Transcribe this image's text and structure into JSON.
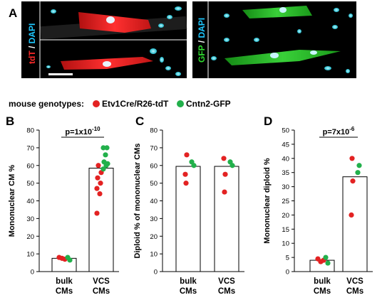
{
  "panel_a": {
    "letter": "A",
    "left_labels": {
      "tdt": "tdT",
      "sep": " / ",
      "dapi": "DAPI"
    },
    "right_labels": {
      "gfp": "GFP",
      "sep": " / ",
      "dapi": "DAPI"
    }
  },
  "legend": {
    "title": "mouse genotypes:",
    "items": [
      {
        "label": "Etv1Cre/R26-tdT",
        "color": "#e32222"
      },
      {
        "label": "Cntn2-GFP",
        "color": "#22b04b"
      }
    ]
  },
  "colors": {
    "red": "#e32222",
    "green": "#22b04b"
  },
  "chart_data": [
    {
      "panel": "B",
      "type": "bar",
      "ylabel": "Mononuclear CM %",
      "ylim": [
        0,
        80
      ],
      "yticks": [
        0,
        10,
        20,
        30,
        40,
        50,
        60,
        70,
        80
      ],
      "categories": [
        [
          "bulk",
          "CMs"
        ],
        [
          "VCS",
          "CMs"
        ]
      ],
      "bar_values": [
        7.5,
        58.5
      ],
      "points": [
        {
          "cat": 0,
          "y": 8,
          "g": "red",
          "dx": -7
        },
        {
          "cat": 0,
          "y": 7.5,
          "g": "red",
          "dx": -3
        },
        {
          "cat": 0,
          "y": 7,
          "g": "red",
          "dx": 1
        },
        {
          "cat": 0,
          "y": 8,
          "g": "green",
          "dx": 5
        },
        {
          "cat": 0,
          "y": 6.5,
          "g": "green",
          "dx": 8
        },
        {
          "cat": 1,
          "y": 33,
          "g": "red",
          "dx": -6
        },
        {
          "cat": 1,
          "y": 44,
          "g": "red",
          "dx": -2
        },
        {
          "cat": 1,
          "y": 47,
          "g": "red",
          "dx": -6
        },
        {
          "cat": 1,
          "y": 50,
          "g": "red",
          "dx": -1
        },
        {
          "cat": 1,
          "y": 53,
          "g": "red",
          "dx": -5
        },
        {
          "cat": 1,
          "y": 56,
          "g": "red",
          "dx": 0
        },
        {
          "cat": 1,
          "y": 60,
          "g": "red",
          "dx": -4
        },
        {
          "cat": 1,
          "y": 58,
          "g": "green",
          "dx": 3
        },
        {
          "cat": 1,
          "y": 60,
          "g": "green",
          "dx": 7
        },
        {
          "cat": 1,
          "y": 62,
          "g": "green",
          "dx": 4
        },
        {
          "cat": 1,
          "y": 61,
          "g": "green",
          "dx": 9
        },
        {
          "cat": 1,
          "y": 66,
          "g": "green",
          "dx": 6
        },
        {
          "cat": 1,
          "y": 70,
          "g": "green",
          "dx": 3
        },
        {
          "cat": 1,
          "y": 70,
          "g": "green",
          "dx": 8
        }
      ],
      "pvalue": {
        "base": "p=1x10",
        "exp": "-10"
      }
    },
    {
      "panel": "C",
      "type": "bar",
      "ylabel": "Diploid % of mononuclear CMs",
      "ylim": [
        0,
        80
      ],
      "yticks": [
        0,
        10,
        20,
        30,
        40,
        50,
        60,
        70,
        80
      ],
      "categories": [
        [
          "bulk",
          "CMs"
        ],
        [
          "VCS",
          "CMs"
        ]
      ],
      "bar_values": [
        59.5,
        59.5
      ],
      "points": [
        {
          "cat": 0,
          "y": 66,
          "g": "red",
          "dx": -2
        },
        {
          "cat": 0,
          "y": 55,
          "g": "red",
          "dx": -4
        },
        {
          "cat": 0,
          "y": 50,
          "g": "red",
          "dx": -3
        },
        {
          "cat": 0,
          "y": 62,
          "g": "green",
          "dx": 5
        },
        {
          "cat": 0,
          "y": 60,
          "g": "green",
          "dx": 8
        },
        {
          "cat": 1,
          "y": 64,
          "g": "red",
          "dx": -4
        },
        {
          "cat": 1,
          "y": 55,
          "g": "red",
          "dx": -2
        },
        {
          "cat": 1,
          "y": 45,
          "g": "red",
          "dx": -3
        },
        {
          "cat": 1,
          "y": 62,
          "g": "green",
          "dx": 5
        },
        {
          "cat": 1,
          "y": 60,
          "g": "green",
          "dx": 8
        }
      ]
    },
    {
      "panel": "D",
      "type": "bar",
      "ylabel": "Mononuclear diploid %",
      "ylim": [
        0,
        50
      ],
      "yticks": [
        0,
        5,
        10,
        15,
        20,
        25,
        30,
        35,
        40,
        45,
        50
      ],
      "categories": [
        [
          "bulk",
          "CMs"
        ],
        [
          "VCS",
          "CMs"
        ]
      ],
      "bar_values": [
        4,
        33.5
      ],
      "points": [
        {
          "cat": 0,
          "y": 4.5,
          "g": "red",
          "dx": -6
        },
        {
          "cat": 0,
          "y": 3.5,
          "g": "red",
          "dx": -2
        },
        {
          "cat": 0,
          "y": 4,
          "g": "red",
          "dx": 2
        },
        {
          "cat": 0,
          "y": 5,
          "g": "green",
          "dx": 5
        },
        {
          "cat": 0,
          "y": 3,
          "g": "green",
          "dx": 8
        },
        {
          "cat": 1,
          "y": 40,
          "g": "red",
          "dx": -4
        },
        {
          "cat": 1,
          "y": 32,
          "g": "red",
          "dx": -3
        },
        {
          "cat": 1,
          "y": 20,
          "g": "red",
          "dx": -5
        },
        {
          "cat": 1,
          "y": 37.5,
          "g": "green",
          "dx": 6
        },
        {
          "cat": 1,
          "y": 35,
          "g": "green",
          "dx": 4
        }
      ],
      "pvalue": {
        "base": "p=7x10",
        "exp": "-6"
      }
    }
  ]
}
